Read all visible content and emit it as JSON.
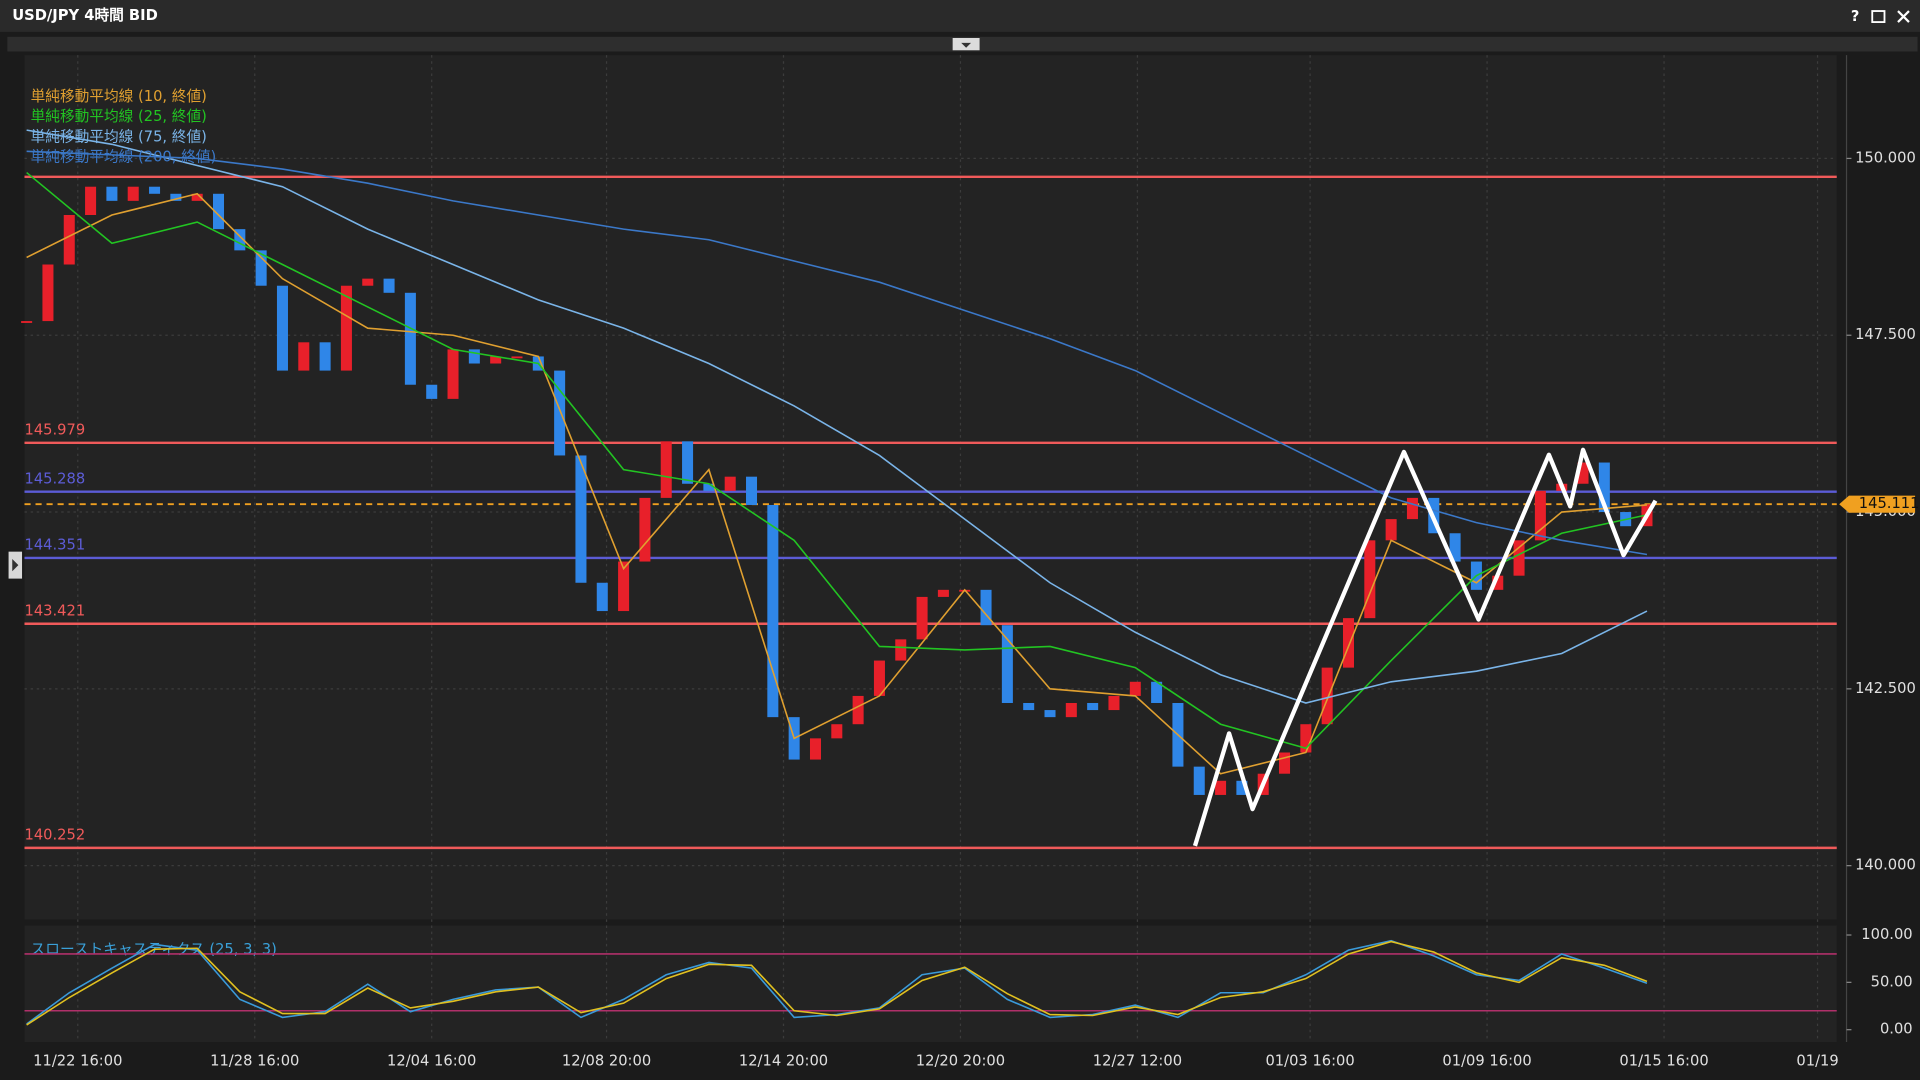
{
  "window": {
    "help": "?"
  },
  "chart_data": [
    {
      "type": "candlestick",
      "title": "USD/JPY 4時間 BID",
      "values": [
        147.7,
        148.5,
        149.2,
        149.6,
        149.4,
        149.6,
        149.5,
        149.4,
        149.5,
        149.0,
        148.7,
        148.2,
        147.0,
        147.4,
        147.0,
        148.2,
        148.3,
        148.1,
        146.8,
        146.6,
        147.3,
        147.1,
        147.2,
        147.2,
        147.0,
        145.8,
        144.0,
        143.6,
        144.3,
        145.2,
        146.0,
        145.4,
        145.3,
        145.5,
        145.1,
        142.1,
        141.5,
        141.8,
        142.0,
        142.4,
        142.9,
        143.2,
        143.8,
        143.9,
        143.9,
        143.4,
        142.3,
        142.2,
        142.1,
        142.3,
        142.2,
        142.4,
        142.6,
        142.3,
        141.4,
        141.0,
        141.2,
        141.0,
        141.3,
        141.6,
        142.0,
        142.8,
        143.5,
        144.6,
        144.9,
        145.2,
        144.7,
        144.3,
        143.9,
        144.1,
        144.6,
        145.3,
        145.4,
        145.7,
        145.0,
        144.8,
        145.11
      ],
      "up_color": "#e8202a",
      "down_color": "#2f86e8",
      "xlim": [
        -0.1,
        84.9
      ],
      "xticks": [
        {
          "value": 2.4,
          "label": "11/22 16:00"
        },
        {
          "value": 10.7,
          "label": "11/28 16:00"
        },
        {
          "value": 19,
          "label": "12/04 16:00"
        },
        {
          "value": 27.2,
          "label": "12/08 20:00"
        },
        {
          "value": 35.5,
          "label": "12/14 20:00"
        },
        {
          "value": 43.8,
          "label": "12/20 20:00"
        },
        {
          "value": 52.1,
          "label": "12/27 12:00"
        },
        {
          "value": 60.2,
          "label": "01/03 16:00"
        },
        {
          "value": 68.5,
          "label": "01/09 16:00"
        },
        {
          "value": 76.8,
          "label": "01/15 16:00"
        },
        {
          "value": 84,
          "label": "01/19"
        }
      ],
      "ylim": [
        139.24,
        151.46
      ],
      "yticks": [
        {
          "value": 140,
          "label": "140.000"
        },
        {
          "value": 142.5,
          "label": "142.500"
        },
        {
          "value": 145,
          "label": "145.000"
        },
        {
          "value": 147.5,
          "label": "147.500"
        },
        {
          "value": 150,
          "label": "150.000"
        }
      ],
      "grid": true,
      "series": [
        {
          "name": "単純移動平均線 (10, 終値)",
          "color": "#e0a030",
          "x": [
            0,
            4,
            8,
            12,
            16,
            20,
            24,
            28,
            32,
            36,
            40,
            44,
            48,
            52,
            56,
            60,
            64,
            68,
            72,
            76
          ],
          "values": [
            148.6,
            149.2,
            149.5,
            148.3,
            147.6,
            147.5,
            147.2,
            144.2,
            145.6,
            141.8,
            142.4,
            143.9,
            142.5,
            142.4,
            141.3,
            141.6,
            144.6,
            144.0,
            145.0,
            145.1
          ]
        },
        {
          "name": "単純移動平均線 (25, 終値)",
          "color": "#22c422",
          "x": [
            0,
            4,
            8,
            12,
            16,
            20,
            24,
            28,
            32,
            36,
            40,
            44,
            48,
            52,
            56,
            60,
            64,
            68,
            72,
            76
          ],
          "values": [
            149.8,
            148.8,
            149.1,
            148.5,
            147.9,
            147.3,
            147.1,
            145.6,
            145.4,
            144.6,
            143.1,
            143.05,
            143.1,
            142.8,
            142.0,
            141.66,
            142.9,
            144.1,
            144.7,
            144.96
          ]
        },
        {
          "name": "単純移動平均線 (75, 終値)",
          "color": "#7ab4e8",
          "x": [
            0,
            4,
            8,
            12,
            16,
            20,
            24,
            28,
            32,
            36,
            40,
            44,
            48,
            52,
            56,
            60,
            64,
            68,
            72,
            76
          ],
          "values": [
            150.4,
            150.2,
            149.9,
            149.6,
            149.0,
            148.5,
            148.0,
            147.6,
            147.1,
            146.5,
            145.8,
            144.9,
            144.0,
            143.3,
            142.7,
            142.3,
            142.6,
            142.75,
            143.0,
            143.6
          ]
        },
        {
          "name": "単純移動平均線 (200, 終値)",
          "color": "#3b78c8",
          "x": [
            0,
            4,
            8,
            12,
            16,
            20,
            24,
            28,
            32,
            36,
            40,
            44,
            48,
            52,
            56,
            60,
            64,
            68,
            72,
            76
          ],
          "values": [
            150.1,
            150.05,
            150.0,
            149.85,
            149.65,
            149.4,
            149.2,
            149.0,
            148.85,
            148.55,
            148.25,
            147.85,
            147.45,
            147.0,
            146.4,
            145.8,
            145.2,
            144.85,
            144.6,
            144.4
          ]
        }
      ],
      "levels": [
        {
          "value": 149.74,
          "color": "#f05a5a"
        },
        {
          "value": 145.979,
          "label": "145.979",
          "color": "#f05a5a"
        },
        {
          "value": 145.288,
          "label": "145.288",
          "color": "#5c5cd6"
        },
        {
          "value": 144.351,
          "label": "144.351",
          "color": "#5c5cd6"
        },
        {
          "value": 143.421,
          "label": "143.421",
          "color": "#f05a5a"
        },
        {
          "value": 140.252,
          "label": "140.252",
          "color": "#f05a5a"
        }
      ],
      "last_price": {
        "value": 145.111,
        "label": "145.111",
        "color": "#f0a020"
      },
      "zigzag": {
        "color": "#ffffff",
        "x": [
          54.8,
          56.4,
          57.5,
          64.6,
          68.1,
          71.4,
          72.4,
          73.0,
          74.9,
          76.4
        ],
        "values": [
          140.28,
          141.87,
          140.8,
          145.85,
          143.48,
          145.81,
          145.08,
          145.88,
          144.39,
          145.16
        ]
      }
    },
    {
      "type": "line",
      "title": "スローストキャスティクス (25, 3, 3)",
      "x": [
        0,
        2,
        4,
        6,
        8,
        10,
        12,
        14,
        16,
        18,
        20,
        22,
        24,
        26,
        28,
        30,
        32,
        34,
        36,
        38,
        40,
        42,
        44,
        46,
        48,
        50,
        52,
        54,
        56,
        58,
        60,
        62,
        64,
        66,
        68,
        70,
        72,
        74,
        76
      ],
      "xlim": [
        -0.1,
        84.9
      ],
      "ylim": [
        -13,
        110
      ],
      "yticks": [
        {
          "value": 0,
          "label": "0.00"
        },
        {
          "value": 50,
          "label": "50.00"
        },
        {
          "value": 100,
          "label": "100.00"
        }
      ],
      "reference_lines": [
        20,
        80
      ],
      "reference_color": "#b0306a",
      "series": [
        {
          "color": "#3a9ad9",
          "values": [
            6,
            39,
            65,
            90,
            84,
            32,
            13,
            19,
            48,
            19,
            32,
            42,
            45,
            13,
            32,
            58,
            71,
            65,
            13,
            16,
            23,
            58,
            65,
            32,
            13,
            16,
            26,
            13,
            39,
            39,
            58,
            84,
            94,
            78,
            58,
            52,
            80,
            65,
            49
          ]
        },
        {
          "color": "#e0c020",
          "values": [
            5,
            34,
            60,
            85,
            86,
            40,
            17,
            17,
            44,
            23,
            30,
            40,
            45,
            18,
            28,
            54,
            69,
            68,
            20,
            15,
            22,
            52,
            66,
            38,
            16,
            15,
            24,
            16,
            34,
            40,
            54,
            80,
            93,
            82,
            60,
            50,
            76,
            68,
            51
          ]
        }
      ]
    }
  ]
}
